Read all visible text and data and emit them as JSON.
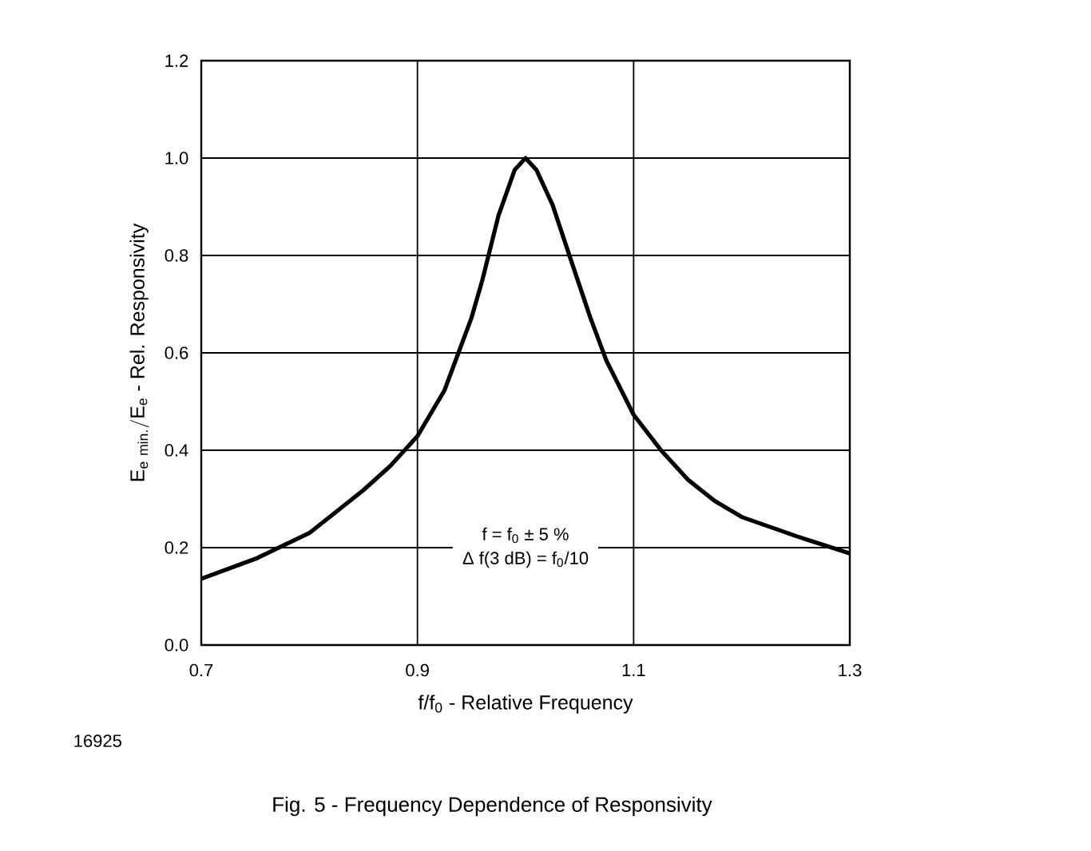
{
  "chart_data": {
    "type": "line",
    "title": "Fig. 5 - Frequency Dependence of Responsivity",
    "xlabel": "f/f$_{0}$ - Relative Frequency",
    "ylabel": "\\mathrm{E}_{\\mathrm{e\\ min.}}/\\mathrm{E}_{\\mathrm{e}}\\mbox{ - Rel. Responsivity}",
    "annotations": [
      "f = f$_{0}$ ± 5 %",
      "Δ f(3 dB) = f$_{0}$/10",
      "16925"
    ],
    "x": [
      0.7,
      0.75,
      0.8,
      0.85,
      0.875,
      0.9,
      0.925,
      0.95,
      0.96,
      0.975,
      0.99,
      1.0,
      1.01,
      1.025,
      1.04,
      1.05,
      1.06,
      1.075,
      1.1,
      1.125,
      1.15,
      1.175,
      1.2,
      1.25,
      1.3
    ],
    "series": [
      {
        "color": "#000000",
        "values": [
          0.136,
          0.177,
          0.23,
          0.318,
          0.368,
          0.429,
          0.523,
          0.672,
          0.749,
          0.882,
          0.976,
          1.0,
          0.976,
          0.904,
          0.804,
          0.738,
          0.672,
          0.583,
          0.473,
          0.401,
          0.34,
          0.296,
          0.263,
          0.224,
          0.188
        ]
      }
    ],
    "xlim": [
      0.7,
      1.3
    ],
    "xticks": [
      0.7,
      0.9,
      1.1,
      1.3
    ],
    "ylim": [
      0,
      1.2
    ],
    "yticks": [
      {
        "value": 0,
        "label": "0.0"
      },
      0.2,
      0.4,
      0.6,
      0.8,
      {
        "value": 1,
        "label": "1.0"
      },
      1.2
    ],
    "grid": true,
    "marker": "none",
    "line_style": "solid"
  }
}
